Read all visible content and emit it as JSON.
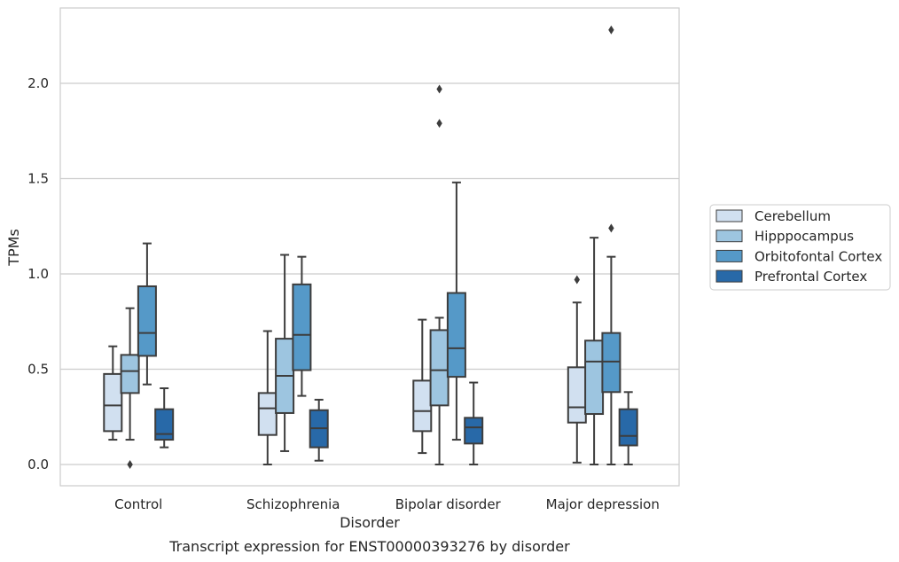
{
  "chart_data": {
    "type": "box",
    "title": "Transcript expression for ENST00000393276 by disorder",
    "xlabel": "Disorder",
    "ylabel": "TPMs",
    "ylim": [
      -0.11,
      2.4
    ],
    "yticks": [
      "0.0",
      "0.5",
      "1.0",
      "1.5",
      "2.0"
    ],
    "grid": true,
    "legend_position": "right",
    "categories": [
      "Control",
      "Schizophrenia",
      "Bipolar disorder",
      "Major depression"
    ],
    "series": [
      {
        "name": "Cerebellum",
        "color": "#d1e0f0",
        "boxes": [
          {
            "whisker_low": 0.13,
            "q1": 0.175,
            "median": 0.31,
            "q3": 0.475,
            "whisker_high": 0.62,
            "outliers": []
          },
          {
            "whisker_low": 0.0,
            "q1": 0.155,
            "median": 0.295,
            "q3": 0.375,
            "whisker_high": 0.7,
            "outliers": []
          },
          {
            "whisker_low": 0.06,
            "q1": 0.175,
            "median": 0.28,
            "q3": 0.44,
            "whisker_high": 0.76,
            "outliers": []
          },
          {
            "whisker_low": 0.01,
            "q1": 0.22,
            "median": 0.3,
            "q3": 0.51,
            "whisker_high": 0.85,
            "outliers": [
              0.97
            ]
          }
        ]
      },
      {
        "name": "Hipppocampus",
        "color": "#9dc5e0",
        "boxes": [
          {
            "whisker_low": 0.13,
            "q1": 0.375,
            "median": 0.49,
            "q3": 0.575,
            "whisker_high": 0.82,
            "outliers": [
              0.0
            ]
          },
          {
            "whisker_low": 0.07,
            "q1": 0.27,
            "median": 0.465,
            "q3": 0.66,
            "whisker_high": 1.1,
            "outliers": []
          },
          {
            "whisker_low": 0.0,
            "q1": 0.31,
            "median": 0.495,
            "q3": 0.705,
            "whisker_high": 0.77,
            "outliers": [
              1.79,
              1.97
            ]
          },
          {
            "whisker_low": 0.0,
            "q1": 0.265,
            "median": 0.54,
            "q3": 0.65,
            "whisker_high": 1.19,
            "outliers": []
          }
        ]
      },
      {
        "name": "Orbitofontal Cortex",
        "color": "#5599c8",
        "boxes": [
          {
            "whisker_low": 0.42,
            "q1": 0.57,
            "median": 0.69,
            "q3": 0.935,
            "whisker_high": 1.16,
            "outliers": []
          },
          {
            "whisker_low": 0.36,
            "q1": 0.495,
            "median": 0.68,
            "q3": 0.945,
            "whisker_high": 1.09,
            "outliers": []
          },
          {
            "whisker_low": 0.13,
            "q1": 0.46,
            "median": 0.61,
            "q3": 0.9,
            "whisker_high": 1.48,
            "outliers": []
          },
          {
            "whisker_low": 0.0,
            "q1": 0.38,
            "median": 0.54,
            "q3": 0.69,
            "whisker_high": 1.09,
            "outliers": [
              1.24,
              2.28
            ]
          }
        ]
      },
      {
        "name": "Prefrontal Cortex",
        "color": "#2869a8",
        "boxes": [
          {
            "whisker_low": 0.09,
            "q1": 0.13,
            "median": 0.16,
            "q3": 0.29,
            "whisker_high": 0.4,
            "outliers": []
          },
          {
            "whisker_low": 0.02,
            "q1": 0.09,
            "median": 0.19,
            "q3": 0.285,
            "whisker_high": 0.34,
            "outliers": []
          },
          {
            "whisker_low": 0.0,
            "q1": 0.11,
            "median": 0.195,
            "q3": 0.245,
            "whisker_high": 0.43,
            "outliers": []
          },
          {
            "whisker_low": 0.0,
            "q1": 0.1,
            "median": 0.15,
            "q3": 0.29,
            "whisker_high": 0.38,
            "outliers": []
          }
        ]
      }
    ]
  },
  "colors": {
    "grid": "#cccccc",
    "frame": "#cccccc",
    "stroke": "#3d3d3d",
    "legend_border": "#cccccc"
  }
}
